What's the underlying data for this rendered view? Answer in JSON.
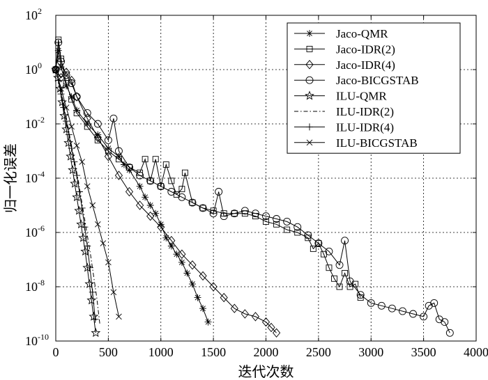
{
  "chart_data": {
    "type": "line",
    "title": "",
    "xlabel": "迭代次数",
    "ylabel": "归一化误差",
    "xlim": [
      0,
      4000
    ],
    "ylim_exp": [
      -10,
      2
    ],
    "y_scale": "log",
    "grid": true,
    "legend_position": "top-right",
    "x_ticks": [
      "0",
      "500",
      "1000",
      "1500",
      "2000",
      "2500",
      "3000",
      "3500",
      "4000"
    ],
    "y_ticks": [
      {
        "base": "10",
        "exp": "2",
        "value": 2
      },
      {
        "base": "10",
        "exp": "0",
        "value": 0
      },
      {
        "base": "10",
        "exp": "-2",
        "value": -2
      },
      {
        "base": "10",
        "exp": "-4",
        "value": -4
      },
      {
        "base": "10",
        "exp": "-6",
        "value": -6
      },
      {
        "base": "10",
        "exp": "-8",
        "value": -8
      },
      {
        "base": "10",
        "exp": "-10",
        "value": -10
      }
    ],
    "series": [
      {
        "name": "Jaco-QMR",
        "marker": "asterisk",
        "dash": "",
        "x": [
          0,
          25,
          50,
          100,
          150,
          200,
          300,
          400,
          500,
          600,
          650,
          700,
          800,
          850,
          900,
          950,
          1000,
          1050,
          1100,
          1150,
          1200,
          1250,
          1300,
          1350,
          1400,
          1450
        ],
        "log10_y": [
          0.0,
          0.7,
          0.1,
          -0.6,
          -1.0,
          -1.5,
          -2.0,
          -2.4,
          -2.9,
          -3.2,
          -3.5,
          -3.7,
          -4.3,
          -4.7,
          -5.0,
          -5.3,
          -5.7,
          -6.2,
          -6.5,
          -6.8,
          -7.1,
          -7.5,
          -7.9,
          -8.4,
          -8.8,
          -9.3
        ]
      },
      {
        "name": "Jaco-IDR(2)",
        "marker": "square",
        "dash": "",
        "x": [
          0,
          25,
          50,
          100,
          150,
          200,
          300,
          400,
          500,
          600,
          700,
          800,
          850,
          900,
          950,
          1000,
          1050,
          1100,
          1150,
          1200,
          1230,
          1300,
          1400,
          1500,
          1600,
          1700,
          1800,
          1900,
          2000,
          2100,
          2200,
          2300,
          2400,
          2450,
          2500,
          2550,
          2600,
          2650,
          2700,
          2750,
          2800,
          2850,
          2900
        ],
        "log10_y": [
          0.0,
          1.1,
          0.4,
          -0.5,
          -1.1,
          -1.6,
          -2.1,
          -2.6,
          -3.0,
          -3.3,
          -3.6,
          -3.8,
          -3.3,
          -4.1,
          -3.3,
          -4.3,
          -3.5,
          -4.1,
          -4.6,
          -4.4,
          -3.8,
          -4.9,
          -5.1,
          -5.2,
          -5.3,
          -5.3,
          -5.3,
          -5.4,
          -5.6,
          -5.7,
          -5.9,
          -6.0,
          -6.2,
          -6.6,
          -6.4,
          -6.8,
          -7.3,
          -7.7,
          -8.0,
          -7.5,
          -8.0,
          -7.9,
          -8.4
        ]
      },
      {
        "name": "Jaco-IDR(4)",
        "marker": "diamond",
        "dash": "",
        "x": [
          0,
          50,
          100,
          150,
          200,
          300,
          400,
          500,
          600,
          700,
          800,
          900,
          1000,
          1100,
          1200,
          1300,
          1400,
          1500,
          1600,
          1700,
          1800,
          1900,
          2000,
          2050,
          2100
        ],
        "log10_y": [
          0.0,
          -0.3,
          -0.1,
          -0.4,
          -1.0,
          -1.8,
          -2.5,
          -3.2,
          -3.9,
          -4.5,
          -5.0,
          -5.4,
          -5.8,
          -6.3,
          -6.8,
          -7.2,
          -7.6,
          -8.0,
          -8.4,
          -8.8,
          -9.0,
          -9.1,
          -9.3,
          -9.5,
          -9.7
        ]
      },
      {
        "name": "Jaco-BICGSTAB",
        "marker": "circle",
        "dash": "",
        "x": [
          0,
          25,
          50,
          100,
          150,
          200,
          300,
          400,
          500,
          550,
          600,
          700,
          800,
          900,
          1000,
          1100,
          1200,
          1300,
          1400,
          1500,
          1550,
          1600,
          1700,
          1800,
          1900,
          2000,
          2100,
          2200,
          2300,
          2400,
          2500,
          2600,
          2700,
          2750,
          2800,
          2900,
          3000,
          3100,
          3200,
          3300,
          3400,
          3500,
          3550,
          3600,
          3650,
          3700,
          3750
        ],
        "log10_y": [
          0.0,
          1.0,
          0.3,
          -0.2,
          -0.5,
          -1.0,
          -1.6,
          -2.0,
          -2.6,
          -1.8,
          -3.0,
          -3.6,
          -3.9,
          -4.1,
          -4.3,
          -4.5,
          -4.7,
          -4.9,
          -5.1,
          -5.3,
          -4.5,
          -5.4,
          -5.3,
          -5.2,
          -5.3,
          -5.4,
          -5.5,
          -5.6,
          -5.8,
          -6.1,
          -6.4,
          -6.7,
          -7.2,
          -6.3,
          -7.8,
          -8.3,
          -8.6,
          -8.7,
          -8.8,
          -8.9,
          -9.0,
          -9.1,
          -8.7,
          -8.6,
          -9.2,
          -9.3,
          -9.7
        ]
      },
      {
        "name": "ILU-QMR",
        "marker": "star",
        "dash": "",
        "x": [
          0,
          20,
          40,
          60,
          80,
          100,
          120,
          140,
          160,
          180,
          200,
          220,
          240,
          260,
          280,
          300,
          320,
          340,
          360,
          380
        ],
        "log10_y": [
          0.0,
          -0.3,
          -0.7,
          -1.2,
          -1.7,
          -2.2,
          -2.7,
          -3.2,
          -3.7,
          -4.2,
          -4.7,
          -5.2,
          -5.7,
          -6.2,
          -6.7,
          -7.3,
          -7.9,
          -8.5,
          -9.1,
          -9.7
        ]
      },
      {
        "name": "ILU-IDR(2)",
        "marker": "none",
        "dash": "6,3,1.5,3",
        "x": [
          0,
          30,
          60,
          90,
          120,
          150,
          180,
          210,
          240,
          270,
          300,
          330,
          360,
          390,
          420
        ],
        "log10_y": [
          0.0,
          -0.4,
          -1.0,
          -1.6,
          -2.2,
          -2.8,
          -3.4,
          -4.0,
          -4.7,
          -5.4,
          -6.1,
          -6.8,
          -7.6,
          -8.4,
          -9.4
        ]
      },
      {
        "name": "ILU-IDR(4)",
        "marker": "plus",
        "dash": "",
        "x": [
          0,
          25,
          50,
          75,
          100,
          125,
          150,
          175,
          200,
          225,
          250,
          275,
          300,
          325,
          350,
          375
        ],
        "log10_y": [
          0.0,
          -0.4,
          -0.9,
          -1.4,
          -1.9,
          -2.4,
          -2.9,
          -3.4,
          -3.9,
          -4.5,
          -5.1,
          -5.8,
          -6.5,
          -7.3,
          -8.2,
          -9.2
        ]
      },
      {
        "name": "ILU-BICGSTAB",
        "marker": "cross",
        "dash": "",
        "x": [
          0,
          50,
          100,
          150,
          200,
          250,
          300,
          350,
          400,
          450,
          500,
          550,
          600
        ],
        "log10_y": [
          0.0,
          -0.7,
          -1.4,
          -2.1,
          -2.8,
          -3.4,
          -4.3,
          -5.0,
          -5.7,
          -6.4,
          -7.1,
          -8.2,
          -9.1
        ]
      }
    ]
  }
}
